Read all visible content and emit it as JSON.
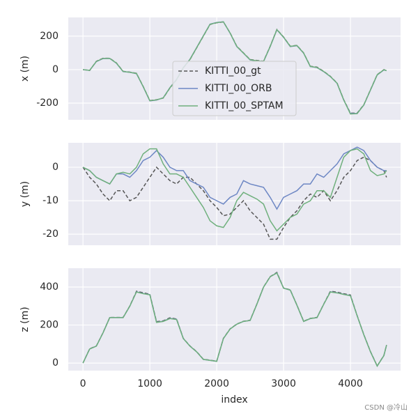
{
  "chart_data": [
    {
      "type": "line",
      "ylabel": "x (m)",
      "legend": "center",
      "grid": true,
      "xlim": [
        -220,
        4750
      ],
      "ylim": [
        -300,
        312
      ],
      "xticks": [
        0,
        1000,
        2000,
        3000,
        4000
      ],
      "yticks": [
        -200,
        0,
        200
      ],
      "x": [
        0,
        100,
        200,
        300,
        400,
        500,
        600,
        700,
        800,
        900,
        1000,
        1100,
        1200,
        1300,
        1400,
        1500,
        1600,
        1700,
        1800,
        1900,
        2000,
        2100,
        2200,
        2300,
        2400,
        2500,
        2600,
        2700,
        2800,
        2900,
        3000,
        3100,
        3200,
        3300,
        3400,
        3500,
        3600,
        3700,
        3800,
        3900,
        4000,
        4100,
        4200,
        4300,
        4400,
        4500,
        4540
      ],
      "series": [
        {
          "name": "KITTI_00_gt",
          "color": "#555555",
          "dashed": true,
          "values": [
            0,
            -5,
            50,
            68,
            68,
            40,
            -10,
            -15,
            -22,
            -100,
            -185,
            -180,
            -170,
            -110,
            -60,
            10,
            60,
            130,
            200,
            270,
            280,
            285,
            220,
            140,
            100,
            60,
            55,
            50,
            140,
            240,
            195,
            140,
            145,
            100,
            20,
            15,
            -10,
            -40,
            -80,
            -180,
            -260,
            -260,
            -210,
            -120,
            -30,
            0,
            -5
          ]
        },
        {
          "name": "KITTI_00_ORB",
          "color": "#6d87c4",
          "dashed": false,
          "values": [
            0,
            -4,
            48,
            66,
            67,
            38,
            -12,
            -16,
            -24,
            -102,
            -187,
            -182,
            -168,
            -108,
            -58,
            12,
            62,
            132,
            202,
            272,
            282,
            286,
            218,
            138,
            98,
            58,
            52,
            48,
            138,
            238,
            193,
            138,
            143,
            98,
            18,
            12,
            -12,
            -42,
            -82,
            -182,
            -262,
            -262,
            -212,
            -122,
            -32,
            -2,
            -6
          ]
        },
        {
          "name": "KITTI_00_SPTAM",
          "color": "#6fb07c",
          "dashed": false,
          "values": [
            0,
            -4,
            49,
            67,
            67,
            39,
            -11,
            -16,
            -23,
            -101,
            -186,
            -181,
            -169,
            -109,
            -59,
            11,
            61,
            131,
            201,
            271,
            281,
            286,
            219,
            139,
            99,
            59,
            53,
            49,
            139,
            239,
            194,
            139,
            144,
            99,
            19,
            13,
            -11,
            -41,
            -81,
            -181,
            -265,
            -263,
            -211,
            -121,
            -31,
            -1,
            -6
          ]
        }
      ]
    },
    {
      "type": "line",
      "ylabel": "y (m)",
      "grid": true,
      "xlim": [
        -220,
        4750
      ],
      "ylim": [
        -23.3,
        7.3
      ],
      "xticks": [
        0,
        1000,
        2000,
        3000,
        4000
      ],
      "yticks": [
        -20,
        -10,
        0
      ],
      "x": [
        0,
        100,
        200,
        300,
        400,
        500,
        600,
        700,
        800,
        900,
        1000,
        1100,
        1200,
        1300,
        1400,
        1500,
        1600,
        1700,
        1800,
        1900,
        2000,
        2100,
        2200,
        2300,
        2400,
        2500,
        2600,
        2700,
        2800,
        2900,
        3000,
        3100,
        3200,
        3300,
        3400,
        3500,
        3600,
        3700,
        3800,
        3900,
        4000,
        4100,
        4200,
        4300,
        4400,
        4500,
        4540
      ],
      "series": [
        {
          "name": "KITTI_00_gt",
          "color": "#555555",
          "dashed": true,
          "values": [
            0,
            -3,
            -5,
            -8,
            -10,
            -7,
            -7,
            -10,
            -9,
            -6,
            -3,
            0,
            -2,
            -4,
            -5,
            -3,
            -3,
            -5,
            -7,
            -10,
            -12,
            -14.5,
            -14,
            -12,
            -10,
            -13,
            -15,
            -17,
            -21.5,
            -21.5,
            -18,
            -15,
            -13,
            -10,
            -8,
            -9,
            -7,
            -10,
            -7,
            -3,
            -1,
            2,
            3,
            2,
            0,
            -1,
            -3
          ]
        },
        {
          "name": "KITTI_00_ORB",
          "color": "#6d87c4",
          "dashed": false,
          "values": [
            0,
            -1,
            -3,
            -4,
            -5,
            -2,
            -2,
            -3,
            -1,
            2,
            3,
            5,
            3,
            0,
            -1,
            -1,
            -4,
            -5,
            -6,
            -9,
            -10,
            -11,
            -9,
            -8,
            -4,
            -5,
            -5.5,
            -6,
            -9,
            -12.5,
            -9,
            -8,
            -7,
            -5,
            -5,
            -2,
            -3,
            -1,
            1,
            4,
            5,
            6,
            5,
            2,
            0,
            -1,
            -1
          ]
        },
        {
          "name": "KITTI_00_SPTAM",
          "color": "#6fb07c",
          "dashed": false,
          "values": [
            0,
            -1,
            -3,
            -4,
            -5,
            -2,
            -1.5,
            -2,
            0,
            4,
            5.5,
            5.5,
            1,
            -2,
            -2,
            -3,
            -6,
            -9,
            -12,
            -16,
            -17.5,
            -18,
            -15,
            -10,
            -7.5,
            -8.5,
            -9.5,
            -11,
            -16,
            -19,
            -17,
            -15,
            -14,
            -11,
            -10,
            -7,
            -7,
            -9,
            -3,
            3,
            5,
            5.5,
            4,
            -1,
            -2.5,
            -2,
            -1
          ]
        }
      ]
    },
    {
      "type": "line",
      "ylabel": "z (m)",
      "xlabel": "index",
      "grid": true,
      "xlim": [
        -220,
        4750
      ],
      "ylim": [
        -40,
        499
      ],
      "xticks": [
        0,
        1000,
        2000,
        3000,
        4000
      ],
      "yticks": [
        0,
        200,
        400
      ],
      "x": [
        0,
        100,
        200,
        300,
        400,
        500,
        600,
        700,
        800,
        900,
        1000,
        1100,
        1200,
        1300,
        1400,
        1500,
        1600,
        1700,
        1800,
        1900,
        2000,
        2100,
        2200,
        2300,
        2400,
        2500,
        2600,
        2700,
        2800,
        2900,
        3000,
        3100,
        3200,
        3300,
        3400,
        3500,
        3600,
        3700,
        3800,
        3900,
        4000,
        4100,
        4200,
        4300,
        4400,
        4500,
        4540
      ],
      "series": [
        {
          "name": "KITTI_00_gt",
          "color": "#555555",
          "dashed": true,
          "values": [
            0,
            75,
            90,
            160,
            240,
            240,
            240,
            300,
            378,
            370,
            362,
            218,
            222,
            238,
            232,
            130,
            90,
            60,
            20,
            15,
            10,
            130,
            180,
            205,
            220,
            225,
            310,
            400,
            455,
            477,
            395,
            385,
            305,
            220,
            235,
            240,
            310,
            378,
            373,
            365,
            358,
            250,
            150,
            60,
            -15,
            40,
            95
          ]
        },
        {
          "name": "KITTI_00_ORB",
          "color": "#6d87c4",
          "dashed": false,
          "values": [
            0,
            74,
            89,
            159,
            239,
            239,
            239,
            299,
            375,
            366,
            360,
            215,
            220,
            235,
            230,
            129,
            89,
            59,
            19,
            14,
            9,
            129,
            179,
            204,
            219,
            224,
            309,
            399,
            454,
            475,
            394,
            384,
            304,
            219,
            234,
            239,
            309,
            375,
            370,
            362,
            355,
            249,
            149,
            59,
            -16,
            39,
            94
          ]
        },
        {
          "name": "KITTI_00_SPTAM",
          "color": "#6fb07c",
          "dashed": false,
          "values": [
            0,
            74,
            89,
            159,
            239,
            239,
            239,
            299,
            374,
            365,
            359,
            214,
            219,
            234,
            229,
            129,
            89,
            59,
            19,
            14,
            9,
            129,
            179,
            204,
            219,
            224,
            309,
            399,
            454,
            474,
            394,
            384,
            304,
            219,
            234,
            239,
            309,
            374,
            369,
            361,
            354,
            249,
            149,
            59,
            -16,
            39,
            94
          ]
        }
      ]
    }
  ],
  "watermark": "CSDN @冷山"
}
